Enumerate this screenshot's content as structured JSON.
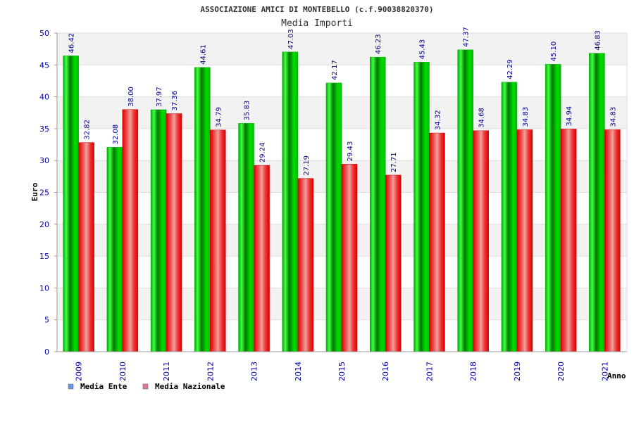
{
  "chart_data": {
    "type": "bar",
    "title": "ASSOCIAZIONE AMICI DI MONTEBELLO (c.f.90038820370)",
    "subtitle": "Media Importi",
    "xlabel": "Anno",
    "ylabel": "Euro",
    "ylim": [
      0,
      50
    ],
    "yticks": [
      0,
      5,
      10,
      15,
      20,
      25,
      30,
      35,
      40,
      45,
      50
    ],
    "grid": true,
    "legend_position": "bottom-left",
    "categories": [
      "2009",
      "2010",
      "2011",
      "2012",
      "2013",
      "2014",
      "2015",
      "2016",
      "2017",
      "2018",
      "2019",
      "2020",
      "2021"
    ],
    "series": [
      {
        "name": "Media Ente",
        "color": "#00cc00",
        "legend_color": "#6699ee",
        "values": [
          46.42,
          32.08,
          37.97,
          44.61,
          35.83,
          47.03,
          42.17,
          46.23,
          45.43,
          47.37,
          42.29,
          45.1,
          46.83
        ],
        "labels": [
          "46.42",
          "32.08",
          "37.97",
          "44.61",
          "35.83",
          "47.03",
          "42.17",
          "46.23",
          "45.43",
          "47.37",
          "42.29",
          "45.10",
          "46.83"
        ]
      },
      {
        "name": "Media Nazionale",
        "color": "#ee0000",
        "legend_color": "#dd7799",
        "values": [
          32.82,
          38.0,
          37.36,
          34.79,
          29.24,
          27.19,
          29.43,
          27.71,
          34.32,
          34.68,
          34.83,
          34.94,
          34.83
        ],
        "labels": [
          "32.82",
          "38.00",
          "37.36",
          "34.79",
          "29.24",
          "27.19",
          "29.43",
          "27.71",
          "34.32",
          "34.68",
          "34.83",
          "34.94",
          "34.83"
        ]
      }
    ]
  }
}
